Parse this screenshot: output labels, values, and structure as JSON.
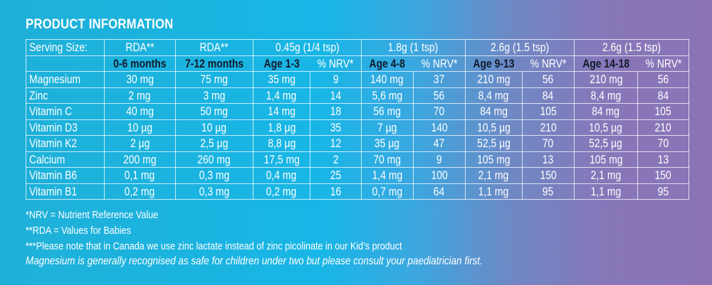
{
  "title": "PRODUCT INFORMATION",
  "table": {
    "serving_label": "Serving Size:",
    "serving_row": [
      "RDA**",
      "RDA**",
      "0.45g (1/4 tsp)",
      "1.8g (1 tsp)",
      "2.6g (1.5 tsp)",
      "2.6g (1.5 tsp)"
    ],
    "age_row": [
      "0-6 months",
      "7-12 months",
      "Age 1-3",
      "% NRV*",
      "Age 4-8",
      "% NRV*",
      "Age 9-13",
      "% NRV*",
      "Age 14-18",
      "% NRV*"
    ],
    "rows": [
      [
        "Magnesium",
        "30 mg",
        "75 mg",
        "35 mg",
        "9",
        "140 mg",
        "37",
        "210 mg",
        "56",
        "210 mg",
        "56"
      ],
      [
        "Zinc",
        "2 mg",
        "3 mg",
        "1,4 mg",
        "14",
        "5,6 mg",
        "56",
        "8,4 mg",
        "84",
        "8,4 mg",
        "84"
      ],
      [
        "Vitamin C",
        "40 mg",
        "50 mg",
        "14 mg",
        "18",
        "56 mg",
        "70",
        "84 mg",
        "105",
        "84 mg",
        "105"
      ],
      [
        "Vitamin D3",
        "10 µg",
        "10 µg",
        "1,8 µg",
        "35",
        "7 µg",
        "140",
        "10,5 µg",
        "210",
        "10,5 µg",
        "210"
      ],
      [
        "Vitamin K2",
        "2 µg",
        "2,5 µg",
        "8,8 µg",
        "12",
        "35 µg",
        "47",
        "52,5 µg",
        "70",
        "52,5 µg",
        "70"
      ],
      [
        "Calcium",
        "200 mg",
        "260 mg",
        "17,5 mg",
        "2",
        "70 mg",
        "9",
        "105 mg",
        "13",
        "105 mg",
        "13"
      ],
      [
        "Vitamin B6",
        "0,1 mg",
        "0,3 mg",
        "0,4 mg",
        "25",
        "1,4 mg",
        "100",
        "2,1 mg",
        "150",
        "2,1 mg",
        "150"
      ],
      [
        "Vitamin B1",
        "0,2 mg",
        "0,3 mg",
        "0,2 mg",
        "16",
        "0,7 mg",
        "64",
        "1,1 mg",
        "95",
        "1,1 mg",
        "95"
      ]
    ]
  },
  "footnotes": [
    "*NRV = Nutrient Reference Value",
    "**RDA = Values for Babies",
    "***Please note that in Canada we use zinc lactate instead of zinc picolinate in our Kid’s product"
  ],
  "note": "Magnesium is generally recognised as safe for children under two but please consult your paediatrician first."
}
